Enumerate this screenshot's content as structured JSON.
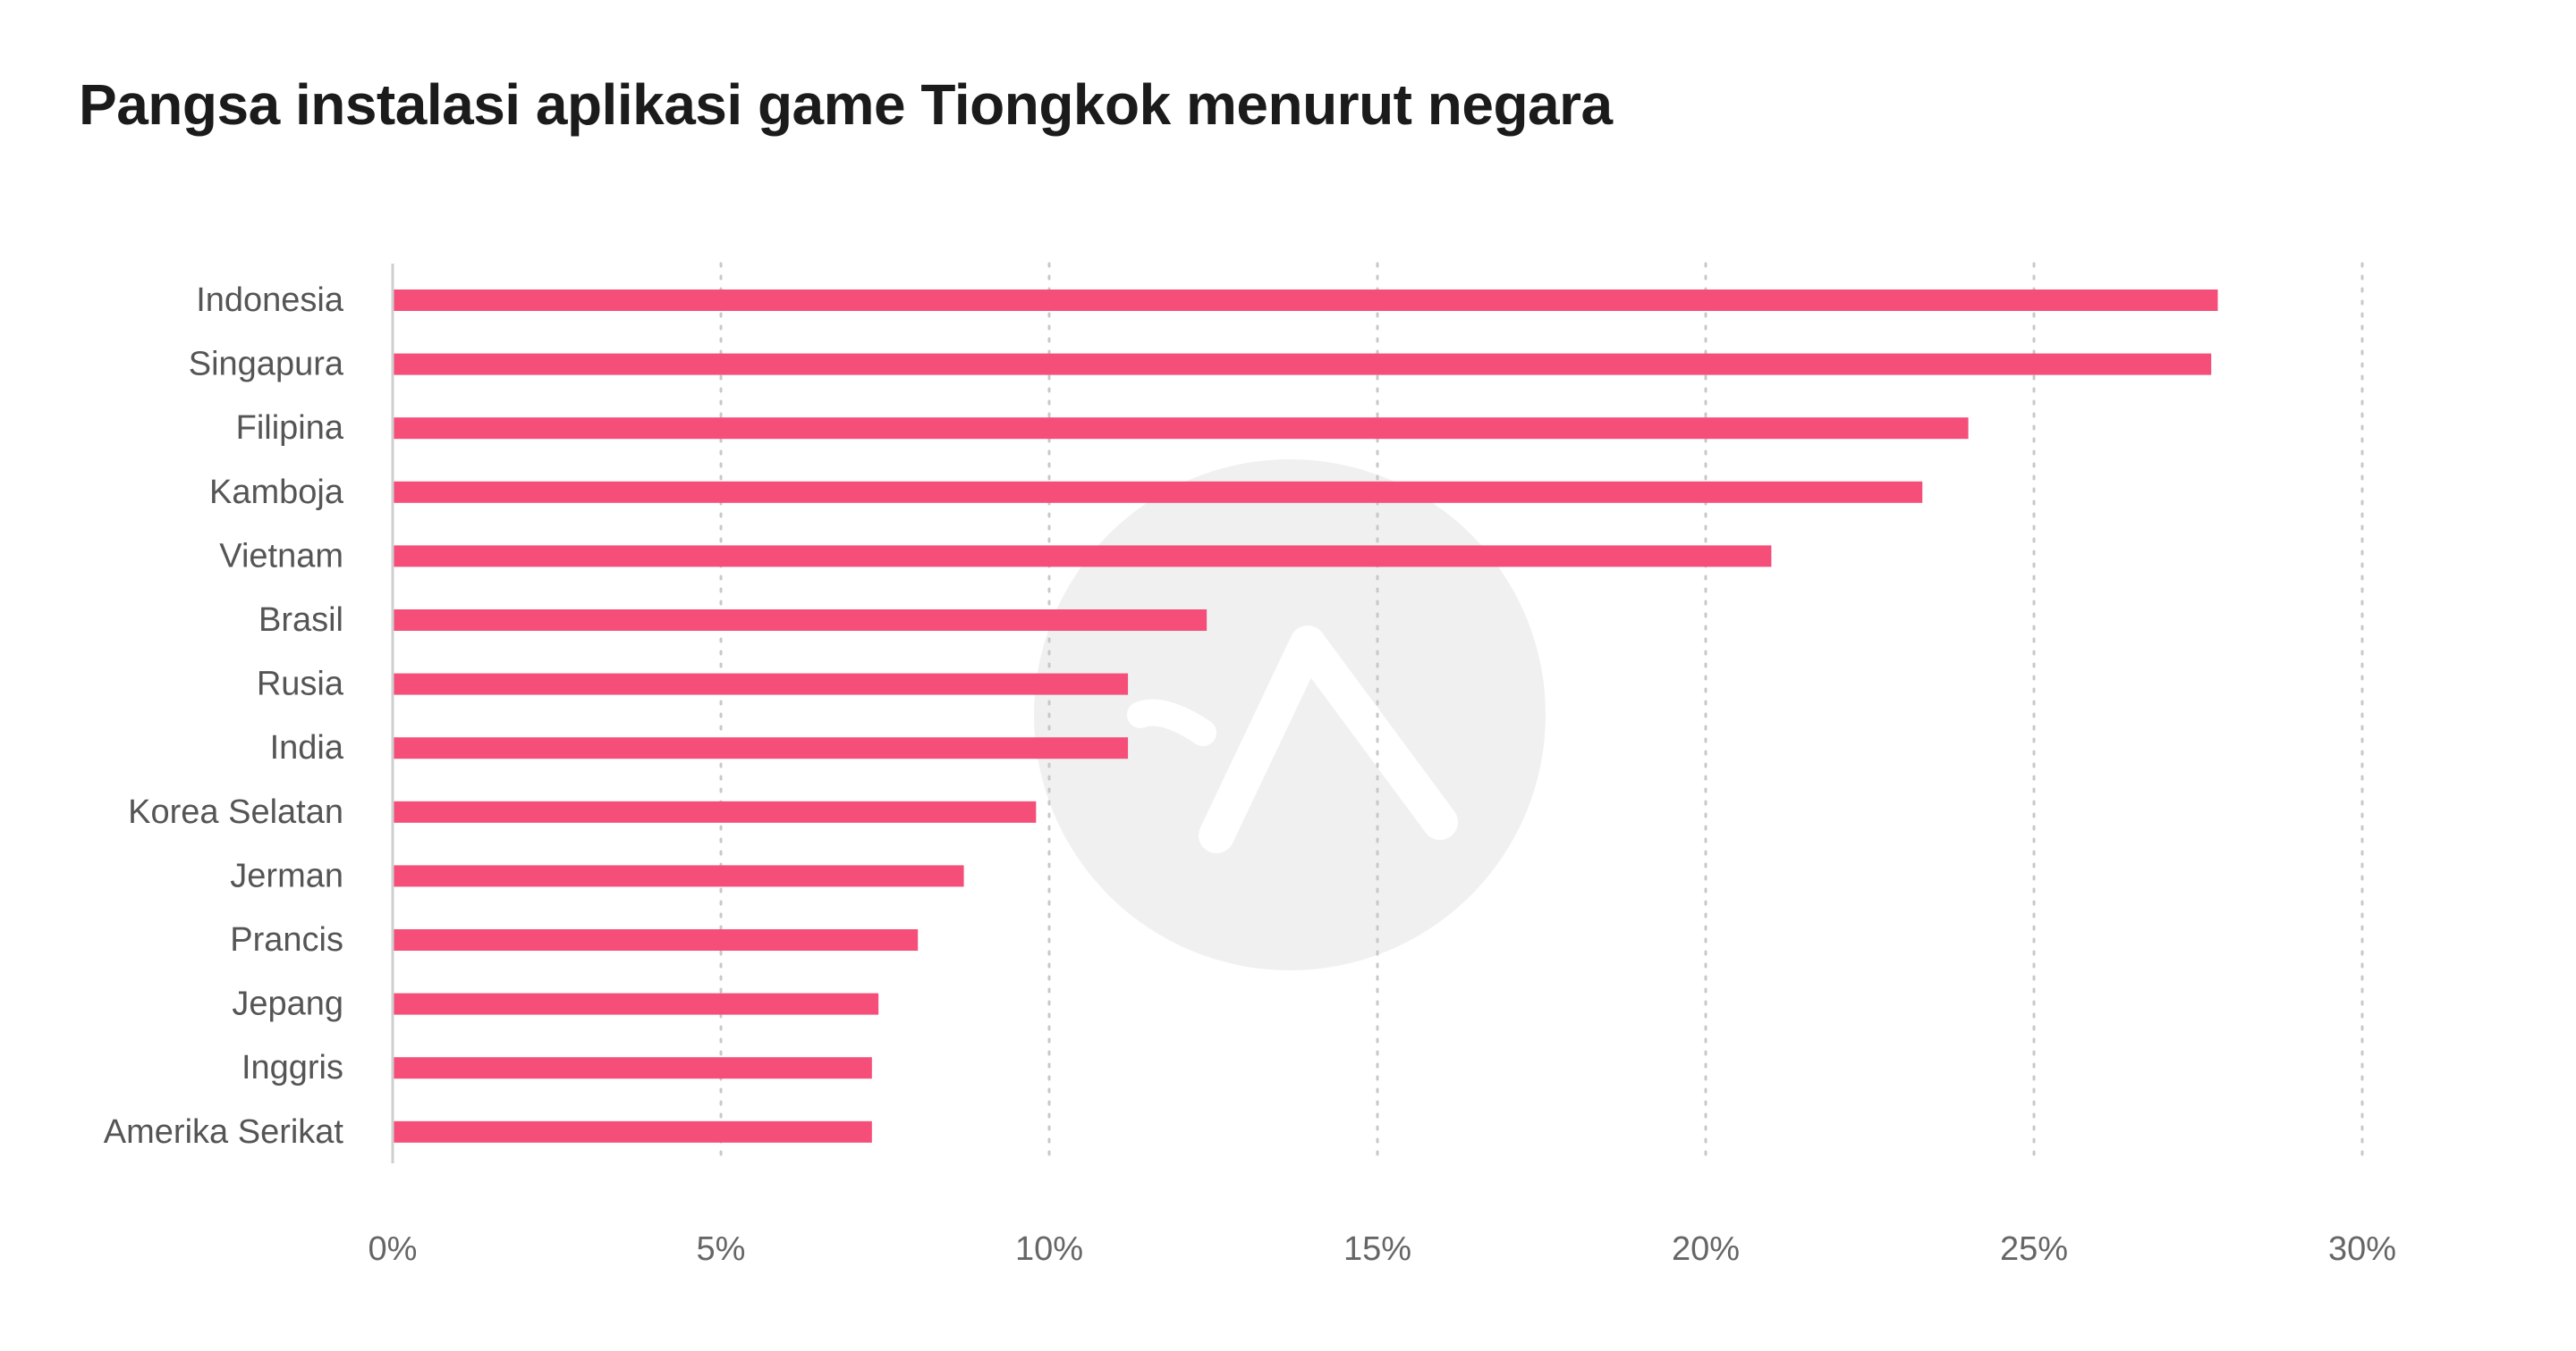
{
  "colors": {
    "bar": "#F44E79",
    "grid": "#c8c8c8",
    "axis": "#cfcfcf",
    "watermark": "#f0f0f0"
  },
  "icons": {
    "watermark": "logo-watermark-icon"
  },
  "chart_data": {
    "type": "bar",
    "orientation": "horizontal",
    "title": "Pangsa instalasi aplikasi game Tiongkok menurut negara",
    "xlabel": "",
    "ylabel": "",
    "categories": [
      "Indonesia",
      "Singapura",
      "Filipina",
      "Kamboja",
      "Vietnam",
      "Brasil",
      "Rusia",
      "India",
      "Korea Selatan",
      "Jerman",
      "Prancis",
      "Jepang",
      "Inggris",
      "Amerika Serikat"
    ],
    "values": [
      27.8,
      27.7,
      24.0,
      23.3,
      21.0,
      12.4,
      11.2,
      11.2,
      9.8,
      8.7,
      8.0,
      7.4,
      7.3,
      7.3
    ],
    "xlim": [
      0,
      30
    ],
    "xticks": [
      0,
      5,
      10,
      15,
      20,
      25,
      30
    ],
    "xtick_labels": [
      "0%",
      "5%",
      "10%",
      "15%",
      "20%",
      "25%",
      "30%"
    ],
    "grid": "vertical dotted",
    "legend": "none"
  }
}
